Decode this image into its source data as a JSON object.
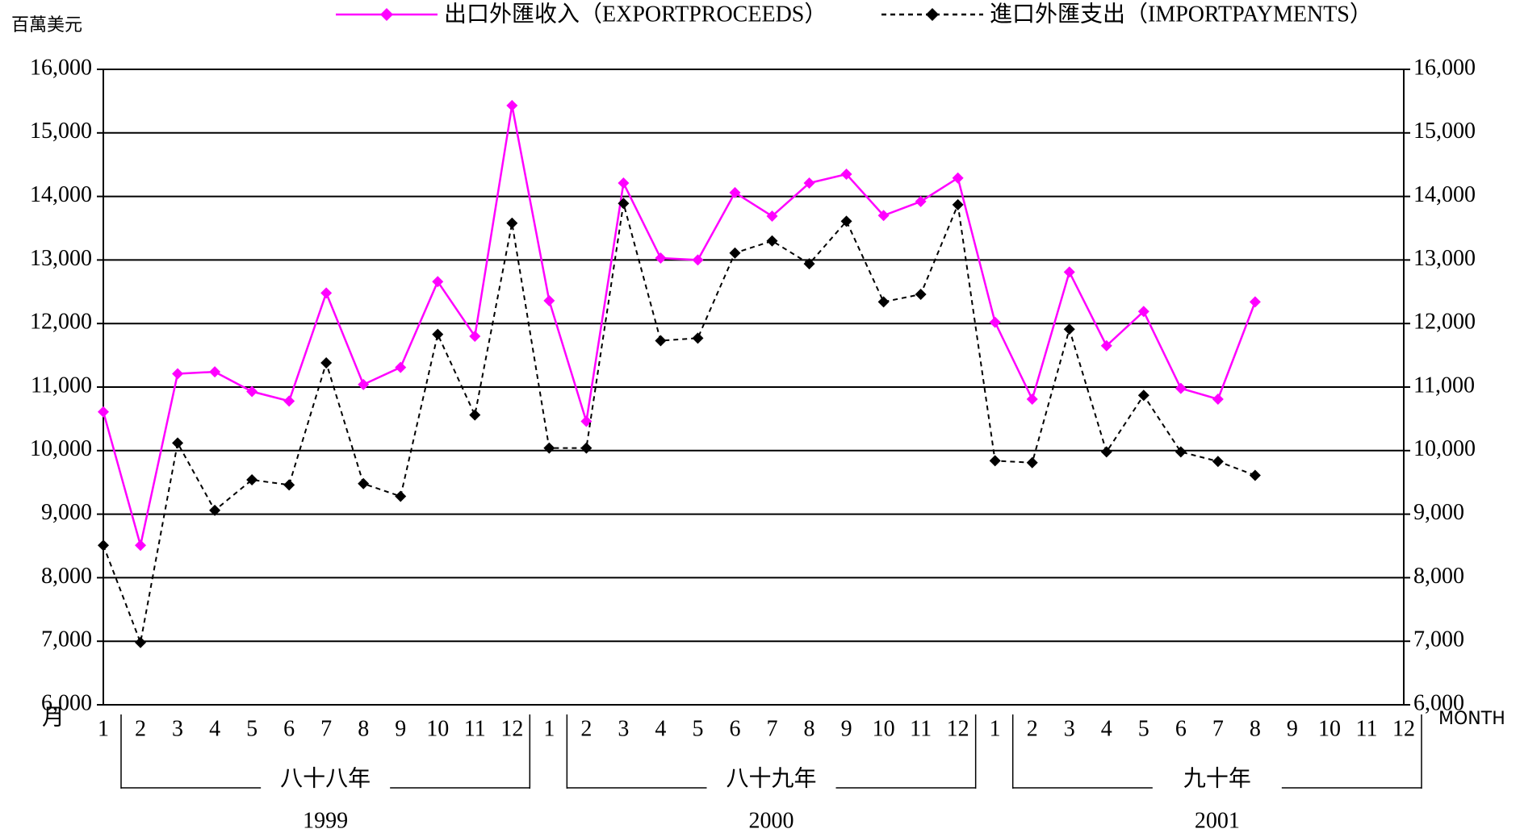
{
  "chart_data": {
    "type": "line",
    "y_label": "百萬美元",
    "x_label_left": "月",
    "x_label_right": "MONTH",
    "categories": [
      "1",
      "2",
      "3",
      "4",
      "5",
      "6",
      "7",
      "8",
      "9",
      "10",
      "11",
      "12",
      "1",
      "2",
      "3",
      "4",
      "5",
      "6",
      "7",
      "8",
      "9",
      "10",
      "11",
      "12",
      "1",
      "2",
      "3",
      "4",
      "5",
      "6",
      "7",
      "8",
      "9",
      "10",
      "11",
      "12"
    ],
    "groups": [
      {
        "label": "八十八年",
        "year": "1999"
      },
      {
        "label": "八十九年",
        "year": "2000"
      },
      {
        "label": "九十年",
        "year": "2001"
      }
    ],
    "series": [
      {
        "name": "出口外匯收入（EXPORTPROCEEDS）",
        "color": "#ff00ff",
        "dash": false,
        "values": [
          10610,
          8510,
          11210,
          11240,
          10930,
          10780,
          12480,
          11040,
          11310,
          12660,
          11800,
          15430,
          12360,
          10460,
          14210,
          13030,
          13000,
          14060,
          13690,
          14210,
          14350,
          13700,
          13920,
          14290,
          12020,
          10810,
          12810,
          11650,
          12190,
          10980,
          10810,
          12340,
          null,
          null,
          null,
          null
        ]
      },
      {
        "name": "進口外匯支出（IMPORTPAYMENTS）",
        "color": "#000000",
        "dash": true,
        "values": [
          8510,
          6980,
          10120,
          9060,
          9540,
          9460,
          11380,
          9480,
          9280,
          11830,
          10560,
          13580,
          10040,
          10040,
          13890,
          11730,
          11770,
          13110,
          13300,
          12940,
          13610,
          12340,
          12460,
          13870,
          9840,
          9810,
          11910,
          9980,
          10870,
          9980,
          9830,
          9610,
          null,
          null,
          null,
          null
        ]
      }
    ],
    "ylim": [
      6000,
      16000
    ],
    "yticks": [
      {
        "value": 6000,
        "label": "6,000"
      },
      {
        "value": 7000,
        "label": "7,000"
      },
      {
        "value": 8000,
        "label": "8,000"
      },
      {
        "value": 9000,
        "label": "9,000"
      },
      {
        "value": 10000,
        "label": "10,000"
      },
      {
        "value": 11000,
        "label": "11,000"
      },
      {
        "value": 12000,
        "label": "12,000"
      },
      {
        "value": 13000,
        "label": "13,000"
      },
      {
        "value": 14000,
        "label": "14,000"
      },
      {
        "value": 15000,
        "label": "15,000"
      },
      {
        "value": 16000,
        "label": "16,000"
      }
    ],
    "grid": true
  }
}
